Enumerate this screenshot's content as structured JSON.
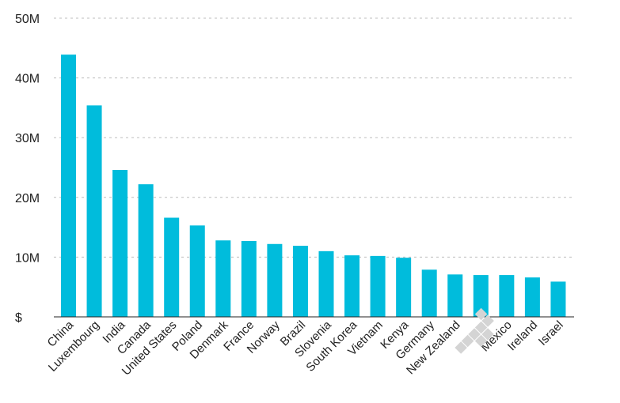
{
  "chart_data": {
    "type": "bar",
    "title": "",
    "xlabel": "",
    "ylabel": "",
    "categories": [
      "China",
      "Luxembourg",
      "India",
      "Canada",
      "United States",
      "Poland",
      "Denmark",
      "France",
      "Norway",
      "Brazil",
      "Slovenia",
      "South Korea",
      "Vietnam",
      "Kenya",
      "Germany",
      "New Zealand",
      "",
      "Mexico",
      "Ireland",
      "Israel"
    ],
    "values": [
      43900000,
      35400000,
      24600000,
      22200000,
      16600000,
      15300000,
      12800000,
      12700000,
      12200000,
      11900000,
      11000000,
      10300000,
      10200000,
      9900000,
      7900000,
      7100000,
      7000000,
      7000000,
      6600000,
      5900000
    ],
    "ylim": [
      0,
      50000000
    ],
    "yticks": [
      0,
      10000000,
      20000000,
      30000000,
      40000000,
      50000000
    ],
    "ytick_labels": [
      "$",
      "10M",
      "20M",
      "30M",
      "40M",
      "50M"
    ],
    "grid": true,
    "bar_color": "#00bcdc",
    "gridline_color": "#bdbdbd",
    "text_color": "#222222"
  }
}
